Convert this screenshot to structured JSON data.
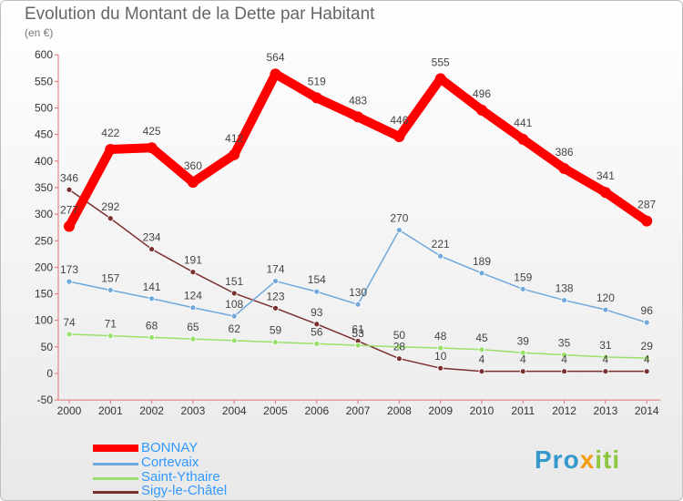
{
  "title": "Evolution du Montant de la Dette par Habitant",
  "unit": "(en €)",
  "brand": {
    "part1": "Pro",
    "part2": "x",
    "part3": "iti"
  },
  "chart_data": {
    "type": "line",
    "x": [
      "2000",
      "2001",
      "2002",
      "2003",
      "2004",
      "2005",
      "2006",
      "2007",
      "2008",
      "2009",
      "2010",
      "2011",
      "2012",
      "2013",
      "2014"
    ],
    "ylim": [
      -50,
      600
    ],
    "yticks": [
      -50,
      0,
      50,
      100,
      150,
      200,
      250,
      300,
      350,
      400,
      450,
      500,
      550,
      600
    ],
    "grid": false,
    "legend_position": "bottom-left",
    "series": [
      {
        "name": "BONNAY",
        "color": "#ff0000",
        "values": [
          277,
          422,
          425,
          360,
          412,
          564,
          519,
          483,
          446,
          555,
          496,
          441,
          386,
          341,
          287
        ]
      },
      {
        "name": "Cortevaix",
        "color": "#6fa8dc",
        "values": [
          173,
          157,
          141,
          124,
          108,
          174,
          154,
          130,
          270,
          221,
          189,
          159,
          138,
          120,
          96
        ]
      },
      {
        "name": "Saint-Ythaire",
        "color": "#99e06a",
        "values": [
          74,
          71,
          68,
          65,
          62,
          59,
          56,
          53,
          50,
          48,
          45,
          39,
          35,
          31,
          29
        ]
      },
      {
        "name": "Sigy-le-Châtel",
        "color": "#7b2e2e",
        "values": [
          346,
          292,
          234,
          191,
          151,
          123,
          93,
          61,
          28,
          10,
          4,
          4,
          4,
          4,
          4
        ]
      }
    ]
  }
}
